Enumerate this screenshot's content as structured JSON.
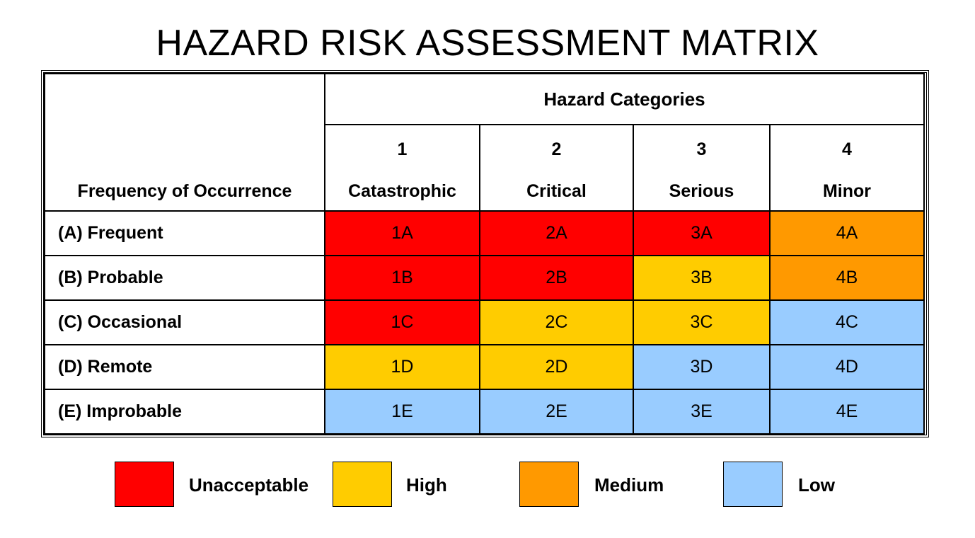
{
  "title": "HAZARD RISK ASSESSMENT MATRIX",
  "corner_label": "Frequency of Occurrence",
  "categories_header": "Hazard Categories",
  "categories": [
    {
      "number": "1",
      "name": "Catastrophic"
    },
    {
      "number": "2",
      "name": "Critical"
    },
    {
      "number": "3",
      "name": "Serious"
    },
    {
      "number": "4",
      "name": "Minor"
    }
  ],
  "rows": [
    {
      "label": "(A)  Frequent",
      "cells": [
        {
          "code": "1A",
          "level": "unacceptable"
        },
        {
          "code": "2A",
          "level": "unacceptable"
        },
        {
          "code": "3A",
          "level": "unacceptable"
        },
        {
          "code": "4A",
          "level": "medium"
        }
      ]
    },
    {
      "label": "(B)  Probable",
      "cells": [
        {
          "code": "1B",
          "level": "unacceptable"
        },
        {
          "code": "2B",
          "level": "unacceptable"
        },
        {
          "code": "3B",
          "level": "high"
        },
        {
          "code": "4B",
          "level": "medium"
        }
      ]
    },
    {
      "label": "(C)  Occasional",
      "cells": [
        {
          "code": "1C",
          "level": "unacceptable"
        },
        {
          "code": "2C",
          "level": "high"
        },
        {
          "code": "3C",
          "level": "high"
        },
        {
          "code": "4C",
          "level": "low"
        }
      ]
    },
    {
      "label": "(D)  Remote",
      "cells": [
        {
          "code": "1D",
          "level": "high"
        },
        {
          "code": "2D",
          "level": "high"
        },
        {
          "code": "3D",
          "level": "low"
        },
        {
          "code": "4D",
          "level": "low"
        }
      ]
    },
    {
      "label": "(E)  Improbable",
      "cells": [
        {
          "code": "1E",
          "level": "low"
        },
        {
          "code": "2E",
          "level": "low"
        },
        {
          "code": "3E",
          "level": "low"
        },
        {
          "code": "4E",
          "level": "low"
        }
      ]
    }
  ],
  "legend": [
    {
      "key": "unacceptable",
      "label": "Unacceptable",
      "color": "#ff0000"
    },
    {
      "key": "high",
      "label": "High",
      "color": "#ffcc00"
    },
    {
      "key": "medium",
      "label": "Medium",
      "color": "#ff9900"
    },
    {
      "key": "low",
      "label": "Low",
      "color": "#99ccff"
    }
  ]
}
